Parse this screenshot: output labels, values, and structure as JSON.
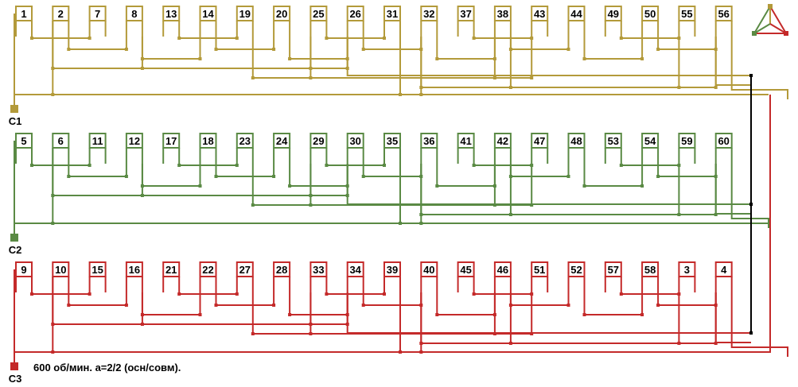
{
  "phases": [
    {
      "id": "c1",
      "terminal": "C1",
      "color": "#b39a3a",
      "slots": [
        "1",
        "2",
        "7",
        "8",
        "13",
        "14",
        "19",
        "20",
        "25",
        "26",
        "31",
        "32",
        "37",
        "38",
        "43",
        "44",
        "49",
        "50",
        "55",
        "56"
      ]
    },
    {
      "id": "c2",
      "terminal": "C2",
      "color": "#5a8a44",
      "slots": [
        "5",
        "6",
        "11",
        "12",
        "17",
        "18",
        "23",
        "24",
        "29",
        "30",
        "35",
        "36",
        "41",
        "42",
        "47",
        "48",
        "53",
        "54",
        "59",
        "60"
      ]
    },
    {
      "id": "c3",
      "terminal": "C3",
      "color": "#c42a2a",
      "slots": [
        "9",
        "10",
        "15",
        "16",
        "21",
        "22",
        "27",
        "28",
        "33",
        "34",
        "39",
        "40",
        "45",
        "46",
        "51",
        "52",
        "57",
        "58",
        "3",
        "4"
      ]
    }
  ],
  "neutral_color": "#000000",
  "caption": "600 об/мин. а=2/2 (осн/совм).",
  "legend_icon": "delta-star-icon"
}
